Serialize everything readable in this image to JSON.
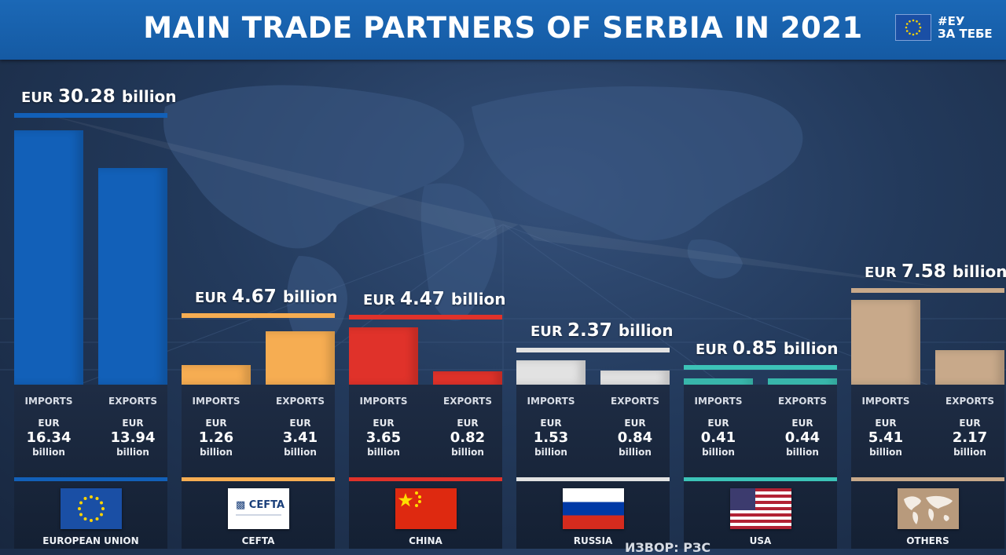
{
  "header": {
    "title": "MAIN TRADE PARTNERS OF SERBIA IN 2021",
    "logo_line1": "#ЕУ",
    "logo_line2": "ЗА ТЕБЕ",
    "background_color": "#1763ae"
  },
  "labels": {
    "imports": "IMPORTS",
    "exports": "EXPORTS",
    "currency": "EUR",
    "unit": "billion"
  },
  "footer_text": "ИЗВОР: РЗС",
  "partners": [
    {
      "name": "EUROPEAN UNION",
      "total": "30.28",
      "imports": "16.34",
      "exports": "13.94",
      "color": "#1260b8",
      "flag": "eu-flag-icon"
    },
    {
      "name": "CEFTA",
      "total": "4.67",
      "imports": "1.26",
      "exports": "3.41",
      "color": "#f6ad52",
      "flag": "cefta-logo-icon",
      "flag_text": "CEFTA"
    },
    {
      "name": "CHINA",
      "total": "4.47",
      "imports": "3.65",
      "exports": "0.82",
      "color": "#e0322a",
      "flag": "china-flag-icon"
    },
    {
      "name": "RUSSIA",
      "total": "2.37",
      "imports": "1.53",
      "exports": "0.84",
      "color": "#e2e2e2",
      "flag": "russia-flag-icon"
    },
    {
      "name": "USA",
      "total": "0.85",
      "imports": "0.41",
      "exports": "0.44",
      "color": "#3cc3b7",
      "flag": "usa-flag-icon"
    },
    {
      "name": "OTHERS",
      "total": "7.58",
      "imports": "5.41",
      "exports": "2.17",
      "color": "#c8a98a",
      "flag": "world-map-icon"
    }
  ],
  "chart_data": {
    "type": "bar",
    "title": "MAIN TRADE PARTNERS OF SERBIA IN 2021",
    "categories": [
      "EUROPEAN UNION",
      "CEFTA",
      "CHINA",
      "RUSSIA",
      "USA",
      "OTHERS"
    ],
    "series": [
      {
        "name": "IMPORTS",
        "values": [
          16.34,
          1.26,
          3.65,
          1.53,
          0.41,
          5.41
        ]
      },
      {
        "name": "EXPORTS",
        "values": [
          13.94,
          3.41,
          0.82,
          0.84,
          0.44,
          2.17
        ]
      }
    ],
    "totals": [
      30.28,
      4.67,
      4.47,
      2.37,
      0.85,
      7.58
    ],
    "unit": "EUR billion"
  }
}
